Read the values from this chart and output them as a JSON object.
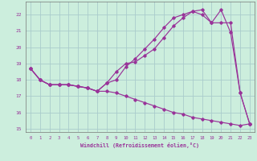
{
  "xlabel": "Windchill (Refroidissement éolien,°C)",
  "bg_color": "#cceedd",
  "line_color": "#993399",
  "grid_color": "#aacccc",
  "xlim": [
    -0.5,
    23.5
  ],
  "ylim": [
    14.8,
    22.8
  ],
  "xticks": [
    0,
    1,
    2,
    3,
    4,
    5,
    6,
    7,
    8,
    9,
    10,
    11,
    12,
    13,
    14,
    15,
    16,
    17,
    18,
    19,
    20,
    21,
    22,
    23
  ],
  "yticks": [
    15,
    16,
    17,
    18,
    19,
    20,
    21,
    22
  ],
  "curve1_x": [
    0,
    1,
    2,
    3,
    4,
    5,
    6,
    7,
    8,
    9,
    10,
    11,
    12,
    13,
    14,
    15,
    16,
    17,
    18,
    19,
    20,
    21,
    22,
    23
  ],
  "curve1_y": [
    18.7,
    18.0,
    17.7,
    17.7,
    17.7,
    17.6,
    17.5,
    17.3,
    17.8,
    18.5,
    19.0,
    19.1,
    19.5,
    19.9,
    20.6,
    21.3,
    21.8,
    22.2,
    22.0,
    21.5,
    22.3,
    20.9,
    17.2,
    15.3
  ],
  "curve2_x": [
    0,
    1,
    2,
    3,
    4,
    5,
    6,
    7,
    8,
    9,
    10,
    11,
    12,
    13,
    14,
    15,
    16,
    17,
    18,
    19,
    20,
    21,
    22,
    23
  ],
  "curve2_y": [
    18.7,
    18.0,
    17.7,
    17.7,
    17.7,
    17.6,
    17.5,
    17.3,
    17.8,
    18.0,
    18.8,
    19.3,
    19.9,
    20.5,
    21.2,
    21.8,
    22.0,
    22.2,
    22.3,
    21.5,
    21.5,
    21.5,
    17.2,
    15.3
  ],
  "curve3_x": [
    0,
    1,
    2,
    3,
    4,
    5,
    6,
    7,
    8,
    9,
    10,
    11,
    12,
    13,
    14,
    15,
    16,
    17,
    18,
    19,
    20,
    21,
    22,
    23
  ],
  "curve3_y": [
    18.7,
    18.0,
    17.7,
    17.7,
    17.7,
    17.6,
    17.5,
    17.3,
    17.3,
    17.2,
    17.0,
    16.8,
    16.6,
    16.4,
    16.2,
    16.0,
    15.9,
    15.7,
    15.6,
    15.5,
    15.4,
    15.3,
    15.2,
    15.3
  ]
}
